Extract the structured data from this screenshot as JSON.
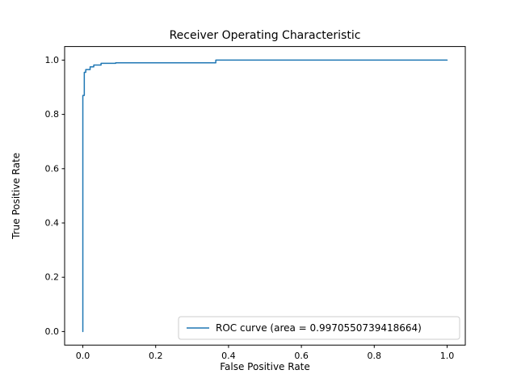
{
  "figure": {
    "background": "#ffffff"
  },
  "chart_data": {
    "type": "line",
    "title": "Receiver Operating Characteristic",
    "xlabel": "False Positive Rate",
    "ylabel": "True Positive Rate",
    "xlim": [
      -0.05,
      1.05
    ],
    "ylim": [
      -0.05,
      1.05
    ],
    "xticks": [
      0.0,
      0.2,
      0.4,
      0.6,
      0.8,
      1.0
    ],
    "yticks": [
      0.0,
      0.2,
      0.4,
      0.6,
      0.8,
      1.0
    ],
    "grid": false,
    "legend_position": "lower right",
    "area": 0.9970550739418664,
    "series": [
      {
        "name": "ROC curve (area = 0.9970550739418664)",
        "color": "#1f77b4",
        "x": [
          0.0,
          0.0,
          0.004,
          0.004,
          0.008,
          0.008,
          0.02,
          0.02,
          0.03,
          0.03,
          0.05,
          0.05,
          0.09,
          0.09,
          0.365,
          0.365,
          1.0
        ],
        "y": [
          0.0,
          0.87,
          0.87,
          0.955,
          0.955,
          0.965,
          0.965,
          0.975,
          0.975,
          0.982,
          0.982,
          0.988,
          0.988,
          0.99,
          0.99,
          1.0,
          1.0
        ]
      }
    ]
  }
}
